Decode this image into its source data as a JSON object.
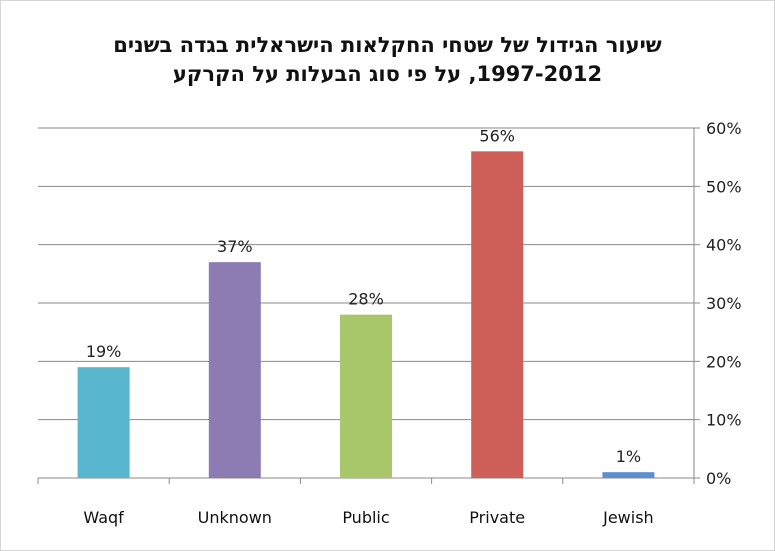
{
  "chart_data": {
    "type": "bar",
    "title": "שיעור הגידול של שטחי החקלאות הישראלית בגדה בשנים",
    "subtitle": "1997-2012, על פי סוג הבעלות על הקרקע",
    "categories": [
      "Waqf",
      "Unknown",
      "Public",
      "Private",
      "Jewish"
    ],
    "values": [
      19,
      37,
      28,
      56,
      1
    ],
    "value_labels": [
      "19%",
      "37%",
      "28%",
      "56%",
      "1%"
    ],
    "colors": [
      "#58b6cf",
      "#8d7bb4",
      "#a7c76a",
      "#cd5f58",
      "#5b8fd0"
    ],
    "ylim": [
      0,
      60
    ],
    "y_ticks": [
      "0%",
      "10%",
      "20%",
      "30%",
      "40%",
      "50%",
      "60%"
    ],
    "y_axis_side": "right",
    "grid": true,
    "legend": "none"
  }
}
